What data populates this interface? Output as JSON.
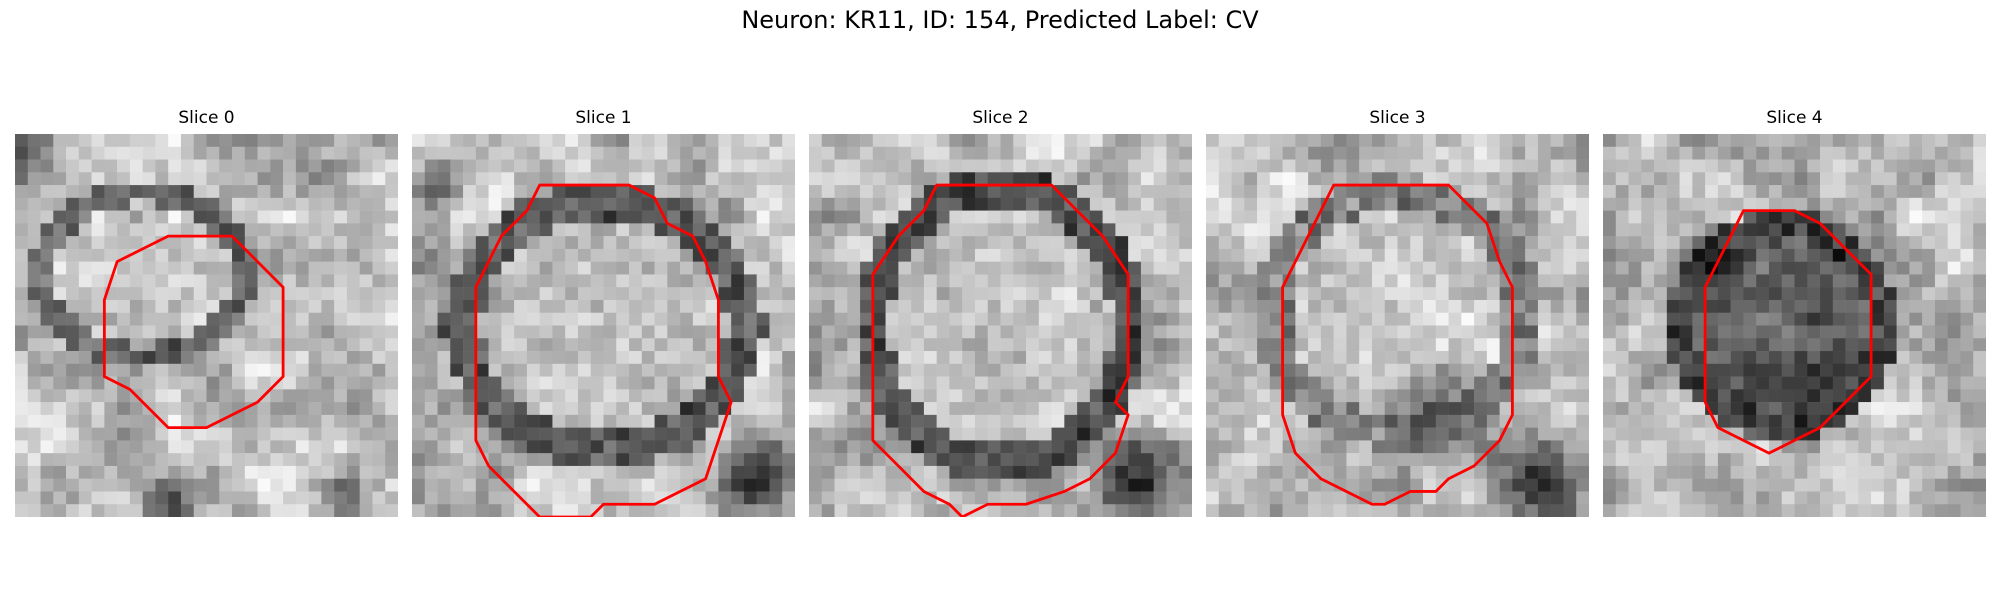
{
  "figure": {
    "title": "Neuron: KR11, ID: 154, Predicted Label: CV"
  },
  "panels": [
    {
      "title": "Slice 0"
    },
    {
      "title": "Slice 1"
    },
    {
      "title": "Slice 2"
    },
    {
      "title": "Slice 3"
    },
    {
      "title": "Slice 4"
    }
  ],
  "colors": {
    "contour": "#ff0000",
    "background": "#ffffff"
  }
}
